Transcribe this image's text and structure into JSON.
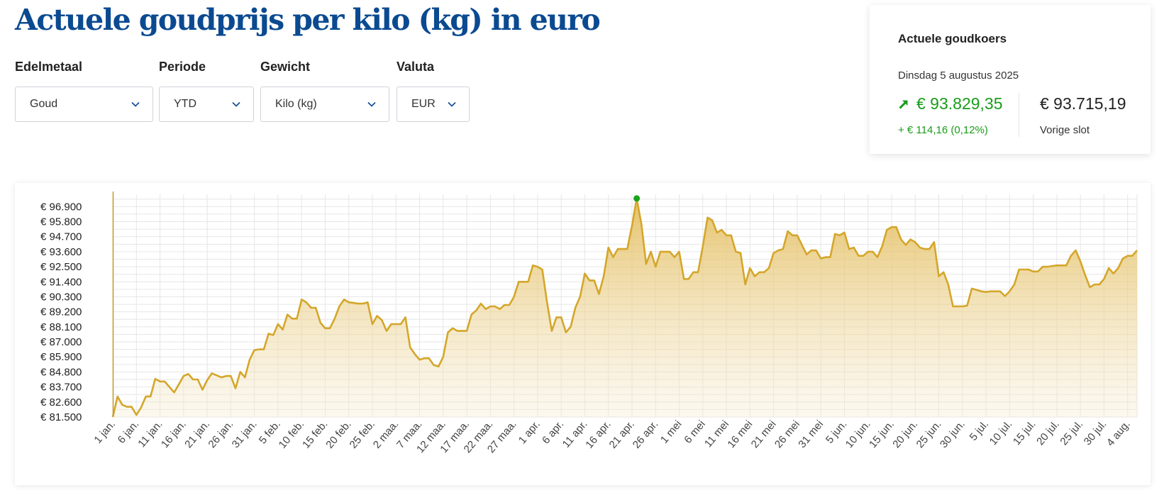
{
  "header": {
    "title": "Actuele goudprijs per kilo (kg) in euro"
  },
  "filters": [
    {
      "label": "Edelmetaal",
      "value": "Goud"
    },
    {
      "label": "Periode",
      "value": "YTD"
    },
    {
      "label": "Gewicht",
      "value": "Kilo (kg)"
    },
    {
      "label": "Valuta",
      "value": "EUR"
    }
  ],
  "quote": {
    "title": "Actuele goudkoers",
    "date": "Dinsdag 5 augustus 2025",
    "current_price": "€ 93.829,35",
    "change": "+ € 114,16 (0,12%)",
    "previous_price": "€ 93.715,19",
    "previous_label": "Vorige slot",
    "up_color": "#1a9c1a",
    "trend_icon": "arrow-up-right-icon"
  },
  "colors": {
    "title": "#0b4a91",
    "line": "#d4a62a",
    "marker": "#1aa31a"
  },
  "chart_data": {
    "type": "area",
    "ylim": [
      81500,
      97800
    ],
    "yticks": [
      "€ 81.500",
      "€ 82.600",
      "€ 83.700",
      "€ 84.800",
      "€ 85.900",
      "€ 87.000",
      "€ 88.100",
      "€ 89.200",
      "€ 90.300",
      "€ 91.400",
      "€ 92.500",
      "€ 93.600",
      "€ 94.700",
      "€ 95.800",
      "€ 96.900"
    ],
    "ytick_values": [
      81500,
      82600,
      83700,
      84800,
      85900,
      87000,
      88100,
      89200,
      90300,
      91400,
      92500,
      93600,
      94700,
      95800,
      96900
    ],
    "xticks": [
      {
        "label": "1 jan.",
        "day": 0
      },
      {
        "label": "6 jan.",
        "day": 5
      },
      {
        "label": "11 jan.",
        "day": 10
      },
      {
        "label": "16 jan.",
        "day": 15
      },
      {
        "label": "21 jan.",
        "day": 20
      },
      {
        "label": "26 jan.",
        "day": 25
      },
      {
        "label": "31 jan.",
        "day": 30
      },
      {
        "label": "5 feb.",
        "day": 35
      },
      {
        "label": "10 feb.",
        "day": 40
      },
      {
        "label": "15 feb.",
        "day": 45
      },
      {
        "label": "20 feb.",
        "day": 50
      },
      {
        "label": "25 feb.",
        "day": 55
      },
      {
        "label": "2 maa.",
        "day": 60
      },
      {
        "label": "7 maa.",
        "day": 65
      },
      {
        "label": "12 maa.",
        "day": 70
      },
      {
        "label": "17 maa.",
        "day": 75
      },
      {
        "label": "22 maa.",
        "day": 80
      },
      {
        "label": "27 maa.",
        "day": 85
      },
      {
        "label": "1 apr.",
        "day": 90
      },
      {
        "label": "6 apr.",
        "day": 95
      },
      {
        "label": "11 apr.",
        "day": 100
      },
      {
        "label": "16 apr.",
        "day": 105
      },
      {
        "label": "21 apr.",
        "day": 110
      },
      {
        "label": "26 apr.",
        "day": 115
      },
      {
        "label": "1 mei",
        "day": 120
      },
      {
        "label": "6 mei",
        "day": 125
      },
      {
        "label": "11 mei",
        "day": 130
      },
      {
        "label": "16 mei",
        "day": 135
      },
      {
        "label": "21 mei",
        "day": 140
      },
      {
        "label": "26 mei",
        "day": 145
      },
      {
        "label": "31 mei",
        "day": 150
      },
      {
        "label": "5 jun.",
        "day": 155
      },
      {
        "label": "10 jun.",
        "day": 160
      },
      {
        "label": "15 jun.",
        "day": 165
      },
      {
        "label": "20 jun.",
        "day": 170
      },
      {
        "label": "25 jun.",
        "day": 175
      },
      {
        "label": "30 jun.",
        "day": 180
      },
      {
        "label": "5 jul.",
        "day": 185
      },
      {
        "label": "10 jul.",
        "day": 190
      },
      {
        "label": "15 jul.",
        "day": 195
      },
      {
        "label": "20 jul.",
        "day": 200
      },
      {
        "label": "25 jul.",
        "day": 205
      },
      {
        "label": "30 jul.",
        "day": 210
      },
      {
        "label": "4 aug.",
        "day": 215
      }
    ],
    "series": [
      {
        "points": [
          [
            0,
            81500
          ],
          [
            1,
            83000
          ],
          [
            2,
            82400
          ],
          [
            3,
            82250
          ],
          [
            4,
            82250
          ],
          [
            5,
            81650
          ],
          [
            6,
            82200
          ],
          [
            7,
            83000
          ],
          [
            8,
            83000
          ],
          [
            9,
            84300
          ],
          [
            10,
            84100
          ],
          [
            11,
            84100
          ],
          [
            12,
            83700
          ],
          [
            13,
            83300
          ],
          [
            14,
            83900
          ],
          [
            15,
            84500
          ],
          [
            16,
            84650
          ],
          [
            17,
            84250
          ],
          [
            18,
            84250
          ],
          [
            19,
            83500
          ],
          [
            20,
            84200
          ],
          [
            21,
            84700
          ],
          [
            22,
            84550
          ],
          [
            23,
            84400
          ],
          [
            24,
            84500
          ],
          [
            25,
            84500
          ],
          [
            26,
            83600
          ],
          [
            27,
            84800
          ],
          [
            28,
            84400
          ],
          [
            29,
            85700
          ],
          [
            30,
            86400
          ],
          [
            31,
            86450
          ],
          [
            32,
            86450
          ],
          [
            33,
            87600
          ],
          [
            34,
            87500
          ],
          [
            35,
            88300
          ],
          [
            36,
            87900
          ],
          [
            37,
            89000
          ],
          [
            38,
            88700
          ],
          [
            39,
            88700
          ],
          [
            40,
            90100
          ],
          [
            41,
            89900
          ],
          [
            42,
            89500
          ],
          [
            43,
            89500
          ],
          [
            44,
            88400
          ],
          [
            45,
            88000
          ],
          [
            46,
            88000
          ],
          [
            47,
            88700
          ],
          [
            48,
            89600
          ],
          [
            49,
            90100
          ],
          [
            50,
            89900
          ],
          [
            51,
            89850
          ],
          [
            52,
            89800
          ],
          [
            53,
            89800
          ],
          [
            54,
            89900
          ],
          [
            55,
            88300
          ],
          [
            56,
            88900
          ],
          [
            57,
            88600
          ],
          [
            58,
            87800
          ],
          [
            59,
            88300
          ],
          [
            60,
            88300
          ],
          [
            61,
            88300
          ],
          [
            62,
            88800
          ],
          [
            63,
            86600
          ],
          [
            64,
            86100
          ],
          [
            65,
            85700
          ],
          [
            66,
            85800
          ],
          [
            67,
            85800
          ],
          [
            68,
            85300
          ],
          [
            69,
            85200
          ],
          [
            70,
            85900
          ],
          [
            71,
            87700
          ],
          [
            72,
            88000
          ],
          [
            73,
            87800
          ],
          [
            74,
            87800
          ],
          [
            75,
            87800
          ],
          [
            76,
            89000
          ],
          [
            77,
            89300
          ],
          [
            78,
            89800
          ],
          [
            79,
            89400
          ],
          [
            80,
            89600
          ],
          [
            81,
            89600
          ],
          [
            82,
            89400
          ],
          [
            83,
            89700
          ],
          [
            84,
            89700
          ],
          [
            85,
            90300
          ],
          [
            86,
            91400
          ],
          [
            87,
            91400
          ],
          [
            88,
            91400
          ],
          [
            89,
            92600
          ],
          [
            90,
            92500
          ],
          [
            91,
            92300
          ],
          [
            92,
            89900
          ],
          [
            93,
            87800
          ],
          [
            94,
            88800
          ],
          [
            95,
            88800
          ],
          [
            96,
            87700
          ],
          [
            97,
            88100
          ],
          [
            98,
            89500
          ],
          [
            99,
            90300
          ],
          [
            100,
            92000
          ],
          [
            101,
            91500
          ],
          [
            102,
            91500
          ],
          [
            103,
            90500
          ],
          [
            104,
            91800
          ],
          [
            105,
            93900
          ],
          [
            106,
            93200
          ],
          [
            107,
            93800
          ],
          [
            108,
            93800
          ],
          [
            109,
            93800
          ],
          [
            110,
            95500
          ],
          [
            111,
            97500
          ],
          [
            112,
            95600
          ],
          [
            113,
            92700
          ],
          [
            114,
            93600
          ],
          [
            115,
            92500
          ],
          [
            116,
            93600
          ],
          [
            117,
            93600
          ],
          [
            118,
            93600
          ],
          [
            119,
            93200
          ],
          [
            120,
            93600
          ],
          [
            121,
            91600
          ],
          [
            122,
            91600
          ],
          [
            123,
            92100
          ],
          [
            124,
            92100
          ],
          [
            125,
            94000
          ],
          [
            126,
            96100
          ],
          [
            127,
            95900
          ],
          [
            128,
            95000
          ],
          [
            129,
            95200
          ],
          [
            130,
            94800
          ],
          [
            131,
            94800
          ],
          [
            132,
            93600
          ],
          [
            133,
            93500
          ],
          [
            134,
            91200
          ],
          [
            135,
            92400
          ],
          [
            136,
            91800
          ],
          [
            137,
            92100
          ],
          [
            138,
            92100
          ],
          [
            139,
            92400
          ],
          [
            140,
            93500
          ],
          [
            141,
            93700
          ],
          [
            142,
            93800
          ],
          [
            143,
            95100
          ],
          [
            144,
            94800
          ],
          [
            145,
            94800
          ],
          [
            146,
            94100
          ],
          [
            147,
            93400
          ],
          [
            148,
            93700
          ],
          [
            149,
            93700
          ],
          [
            150,
            93100
          ],
          [
            151,
            93200
          ],
          [
            152,
            93200
          ],
          [
            153,
            94900
          ],
          [
            154,
            94800
          ],
          [
            155,
            95000
          ],
          [
            156,
            93800
          ],
          [
            157,
            93900
          ],
          [
            158,
            93300
          ],
          [
            159,
            93300
          ],
          [
            160,
            93600
          ],
          [
            161,
            93600
          ],
          [
            162,
            93200
          ],
          [
            163,
            94000
          ],
          [
            164,
            95200
          ],
          [
            165,
            95400
          ],
          [
            166,
            95400
          ],
          [
            167,
            94500
          ],
          [
            168,
            94100
          ],
          [
            169,
            94500
          ],
          [
            170,
            94300
          ],
          [
            171,
            93900
          ],
          [
            172,
            93800
          ],
          [
            173,
            93800
          ],
          [
            174,
            94300
          ],
          [
            175,
            91800
          ],
          [
            176,
            92100
          ],
          [
            177,
            91200
          ],
          [
            178,
            89600
          ],
          [
            179,
            89600
          ],
          [
            180,
            89600
          ],
          [
            181,
            89650
          ],
          [
            182,
            90900
          ],
          [
            183,
            90800
          ],
          [
            184,
            90700
          ],
          [
            185,
            90650
          ],
          [
            186,
            90700
          ],
          [
            187,
            90700
          ],
          [
            188,
            90700
          ],
          [
            189,
            90350
          ],
          [
            190,
            90700
          ],
          [
            191,
            91200
          ],
          [
            192,
            92300
          ],
          [
            193,
            92300
          ],
          [
            194,
            92300
          ],
          [
            195,
            92150
          ],
          [
            196,
            92150
          ],
          [
            197,
            92500
          ],
          [
            198,
            92500
          ],
          [
            199,
            92550
          ],
          [
            200,
            92600
          ],
          [
            201,
            92600
          ],
          [
            202,
            92600
          ],
          [
            203,
            93300
          ],
          [
            204,
            93700
          ],
          [
            205,
            92900
          ],
          [
            206,
            91900
          ],
          [
            207,
            91000
          ],
          [
            208,
            91200
          ],
          [
            209,
            91200
          ],
          [
            210,
            91600
          ],
          [
            211,
            92400
          ],
          [
            212,
            92000
          ],
          [
            213,
            92400
          ],
          [
            214,
            93100
          ],
          [
            215,
            93300
          ],
          [
            216,
            93300
          ],
          [
            217,
            93700
          ]
        ]
      }
    ],
    "highlight": {
      "day": 111,
      "value": 97500
    },
    "grid": true,
    "x_range": [
      0,
      217
    ]
  }
}
